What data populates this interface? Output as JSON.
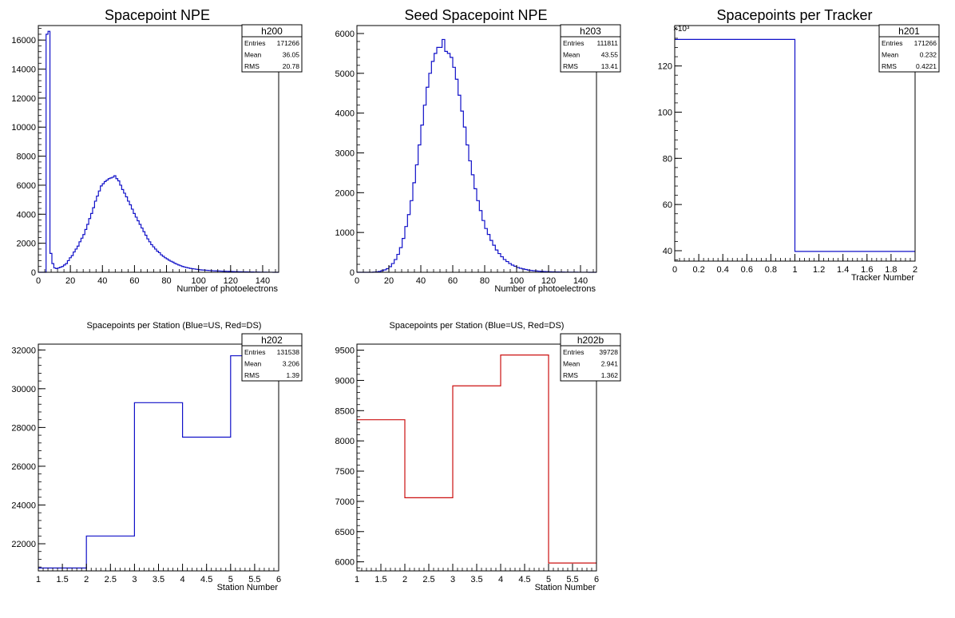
{
  "chart_data": [
    {
      "type": "bar",
      "title": "Spacepoint NPE",
      "xlabel": "Number of photoelectrons",
      "ylabel": "",
      "xlim": [
        0,
        150
      ],
      "ylim": [
        0,
        17000
      ],
      "xticks": [
        0,
        20,
        40,
        60,
        80,
        100,
        120,
        140
      ],
      "yticks": [
        0,
        2000,
        4000,
        6000,
        8000,
        10000,
        12000,
        14000,
        16000
      ],
      "series": [
        {
          "color": "#1010c8",
          "values": [
            0,
            0,
            0,
            0,
            16400,
            16600,
            1300,
            600,
            300,
            250,
            300,
            350,
            400,
            500,
            600,
            800,
            1000,
            1150,
            1400,
            1600,
            1800,
            2100,
            2350,
            2600,
            2950,
            3300,
            3700,
            4050,
            4450,
            4900,
            5250,
            5600,
            5950,
            6100,
            6250,
            6350,
            6450,
            6500,
            6550,
            6650,
            6450,
            6300,
            6000,
            5700,
            5450,
            5200,
            4900,
            4650,
            4350,
            4050,
            3800,
            3550,
            3300,
            3050,
            2800,
            2550,
            2300,
            2100,
            1900,
            1750,
            1600,
            1450,
            1350,
            1200,
            1100,
            1000,
            920,
            830,
            760,
            700,
            620,
            560,
            500,
            450,
            400,
            360,
            330,
            300,
            270,
            250,
            230,
            210,
            190,
            170,
            160,
            150,
            140,
            130,
            120,
            110,
            100,
            95,
            90,
            85,
            80,
            75,
            70,
            65,
            60,
            55,
            50,
            45,
            40,
            38,
            35,
            32,
            30,
            28,
            25,
            23,
            20,
            18,
            15,
            13,
            11,
            9,
            7,
            5,
            4,
            3,
            2,
            1,
            0,
            0
          ]
        }
      ],
      "stats": {
        "name": "h200",
        "Entries": "171266",
        "Mean": "36.05",
        "RMS": "20.78"
      }
    },
    {
      "type": "bar",
      "title": "Seed Spacepoint NPE",
      "xlabel": "Number of photoelectrons",
      "ylabel": "",
      "xlim": [
        0,
        150
      ],
      "ylim": [
        0,
        6200
      ],
      "xticks": [
        0,
        20,
        40,
        60,
        80,
        100,
        120,
        140
      ],
      "yticks": [
        0,
        1000,
        2000,
        3000,
        4000,
        5000,
        6000
      ],
      "series": [
        {
          "color": "#1010c8",
          "values": [
            0,
            0,
            0,
            0,
            0,
            0,
            5,
            10,
            20,
            40,
            60,
            90,
            140,
            220,
            320,
            450,
            620,
            850,
            1150,
            1450,
            1800,
            2250,
            2700,
            3200,
            3700,
            4200,
            4650,
            5000,
            5300,
            5500,
            5650,
            5650,
            5850,
            5550,
            5500,
            5400,
            5150,
            4850,
            4450,
            4050,
            3650,
            3200,
            2800,
            2450,
            2100,
            1800,
            1550,
            1300,
            1100,
            950,
            800,
            680,
            560,
            470,
            390,
            320,
            270,
            220,
            180,
            150,
            120,
            100,
            85,
            70,
            55,
            45,
            38,
            32,
            26,
            22,
            18,
            15,
            12,
            10,
            8,
            7,
            6,
            5,
            4,
            3,
            3,
            2,
            2,
            1,
            1,
            1,
            1,
            0,
            0,
            0
          ]
        }
      ],
      "stats": {
        "name": "h203",
        "Entries": "111811",
        "Mean": "43.55",
        "RMS": "13.41"
      }
    },
    {
      "type": "bar",
      "title": "Spacepoints per Tracker",
      "xlabel": "Tracker Number",
      "ylabel": "",
      "y_multiplier": "×10³",
      "xlim": [
        0,
        2
      ],
      "ylim": [
        35.5,
        137.5
      ],
      "xticks": [
        0,
        0.2,
        0.4,
        0.6,
        0.8,
        1,
        1.2,
        1.4,
        1.6,
        1.8,
        2
      ],
      "x_tick_labels": [
        "0",
        "0.2",
        "0.4",
        "0.6",
        "0.8",
        "1",
        "1.2",
        "1.4",
        "1.6",
        "1.8",
        "2"
      ],
      "yticks": [
        40,
        60,
        80,
        100,
        120
      ],
      "bin_edges": [
        0,
        1,
        2
      ],
      "series": [
        {
          "color": "#1010c8",
          "values": [
            131.5,
            39.7
          ]
        }
      ],
      "stats": {
        "name": "h201",
        "Entries": "171266",
        "Mean": "0.232",
        "RMS": "0.4221"
      }
    },
    {
      "type": "bar",
      "title": "Spacepoints per Station (Blue=US, Red=DS)",
      "xlabel": "Station Number",
      "ylabel": "",
      "xlim": [
        1,
        6
      ],
      "ylim": [
        20600,
        32300
      ],
      "xticks": [
        1,
        1.5,
        2,
        2.5,
        3,
        3.5,
        4,
        4.5,
        5,
        5.5,
        6
      ],
      "x_tick_labels": [
        "1",
        "1.5",
        "2",
        "2.5",
        "3",
        "3.5",
        "4",
        "4.5",
        "5",
        "5.5",
        "6"
      ],
      "yticks": [
        22000,
        24000,
        26000,
        28000,
        30000,
        32000
      ],
      "bin_edges": [
        1,
        2,
        3,
        4,
        5,
        6
      ],
      "series": [
        {
          "color": "#1010c8",
          "values": [
            20750,
            22400,
            29280,
            27500,
            31700
          ]
        }
      ],
      "stats": {
        "name": "h202",
        "Entries": "131538",
        "Mean": "3.206",
        "RMS": "1.39"
      }
    },
    {
      "type": "bar",
      "title": "Spacepoints per Station (Blue=US, Red=DS)",
      "xlabel": "Station Number",
      "ylabel": "",
      "xlim": [
        1,
        6
      ],
      "ylim": [
        5850,
        9600
      ],
      "xticks": [
        1,
        1.5,
        2,
        2.5,
        3,
        3.5,
        4,
        4.5,
        5,
        5.5,
        6
      ],
      "x_tick_labels": [
        "1",
        "1.5",
        "2",
        "2.5",
        "3",
        "3.5",
        "4",
        "4.5",
        "5",
        "5.5",
        "6"
      ],
      "yticks": [
        6000,
        6500,
        7000,
        7500,
        8000,
        8500,
        9000,
        9500
      ],
      "bin_edges": [
        1,
        2,
        3,
        4,
        5,
        6
      ],
      "series": [
        {
          "color": "#cc1010",
          "values": [
            8350,
            7060,
            8910,
            9420,
            5980
          ]
        }
      ],
      "stats": {
        "name": "h202b",
        "Entries": "39728",
        "Mean": "2.941",
        "RMS": "1.362"
      }
    }
  ]
}
